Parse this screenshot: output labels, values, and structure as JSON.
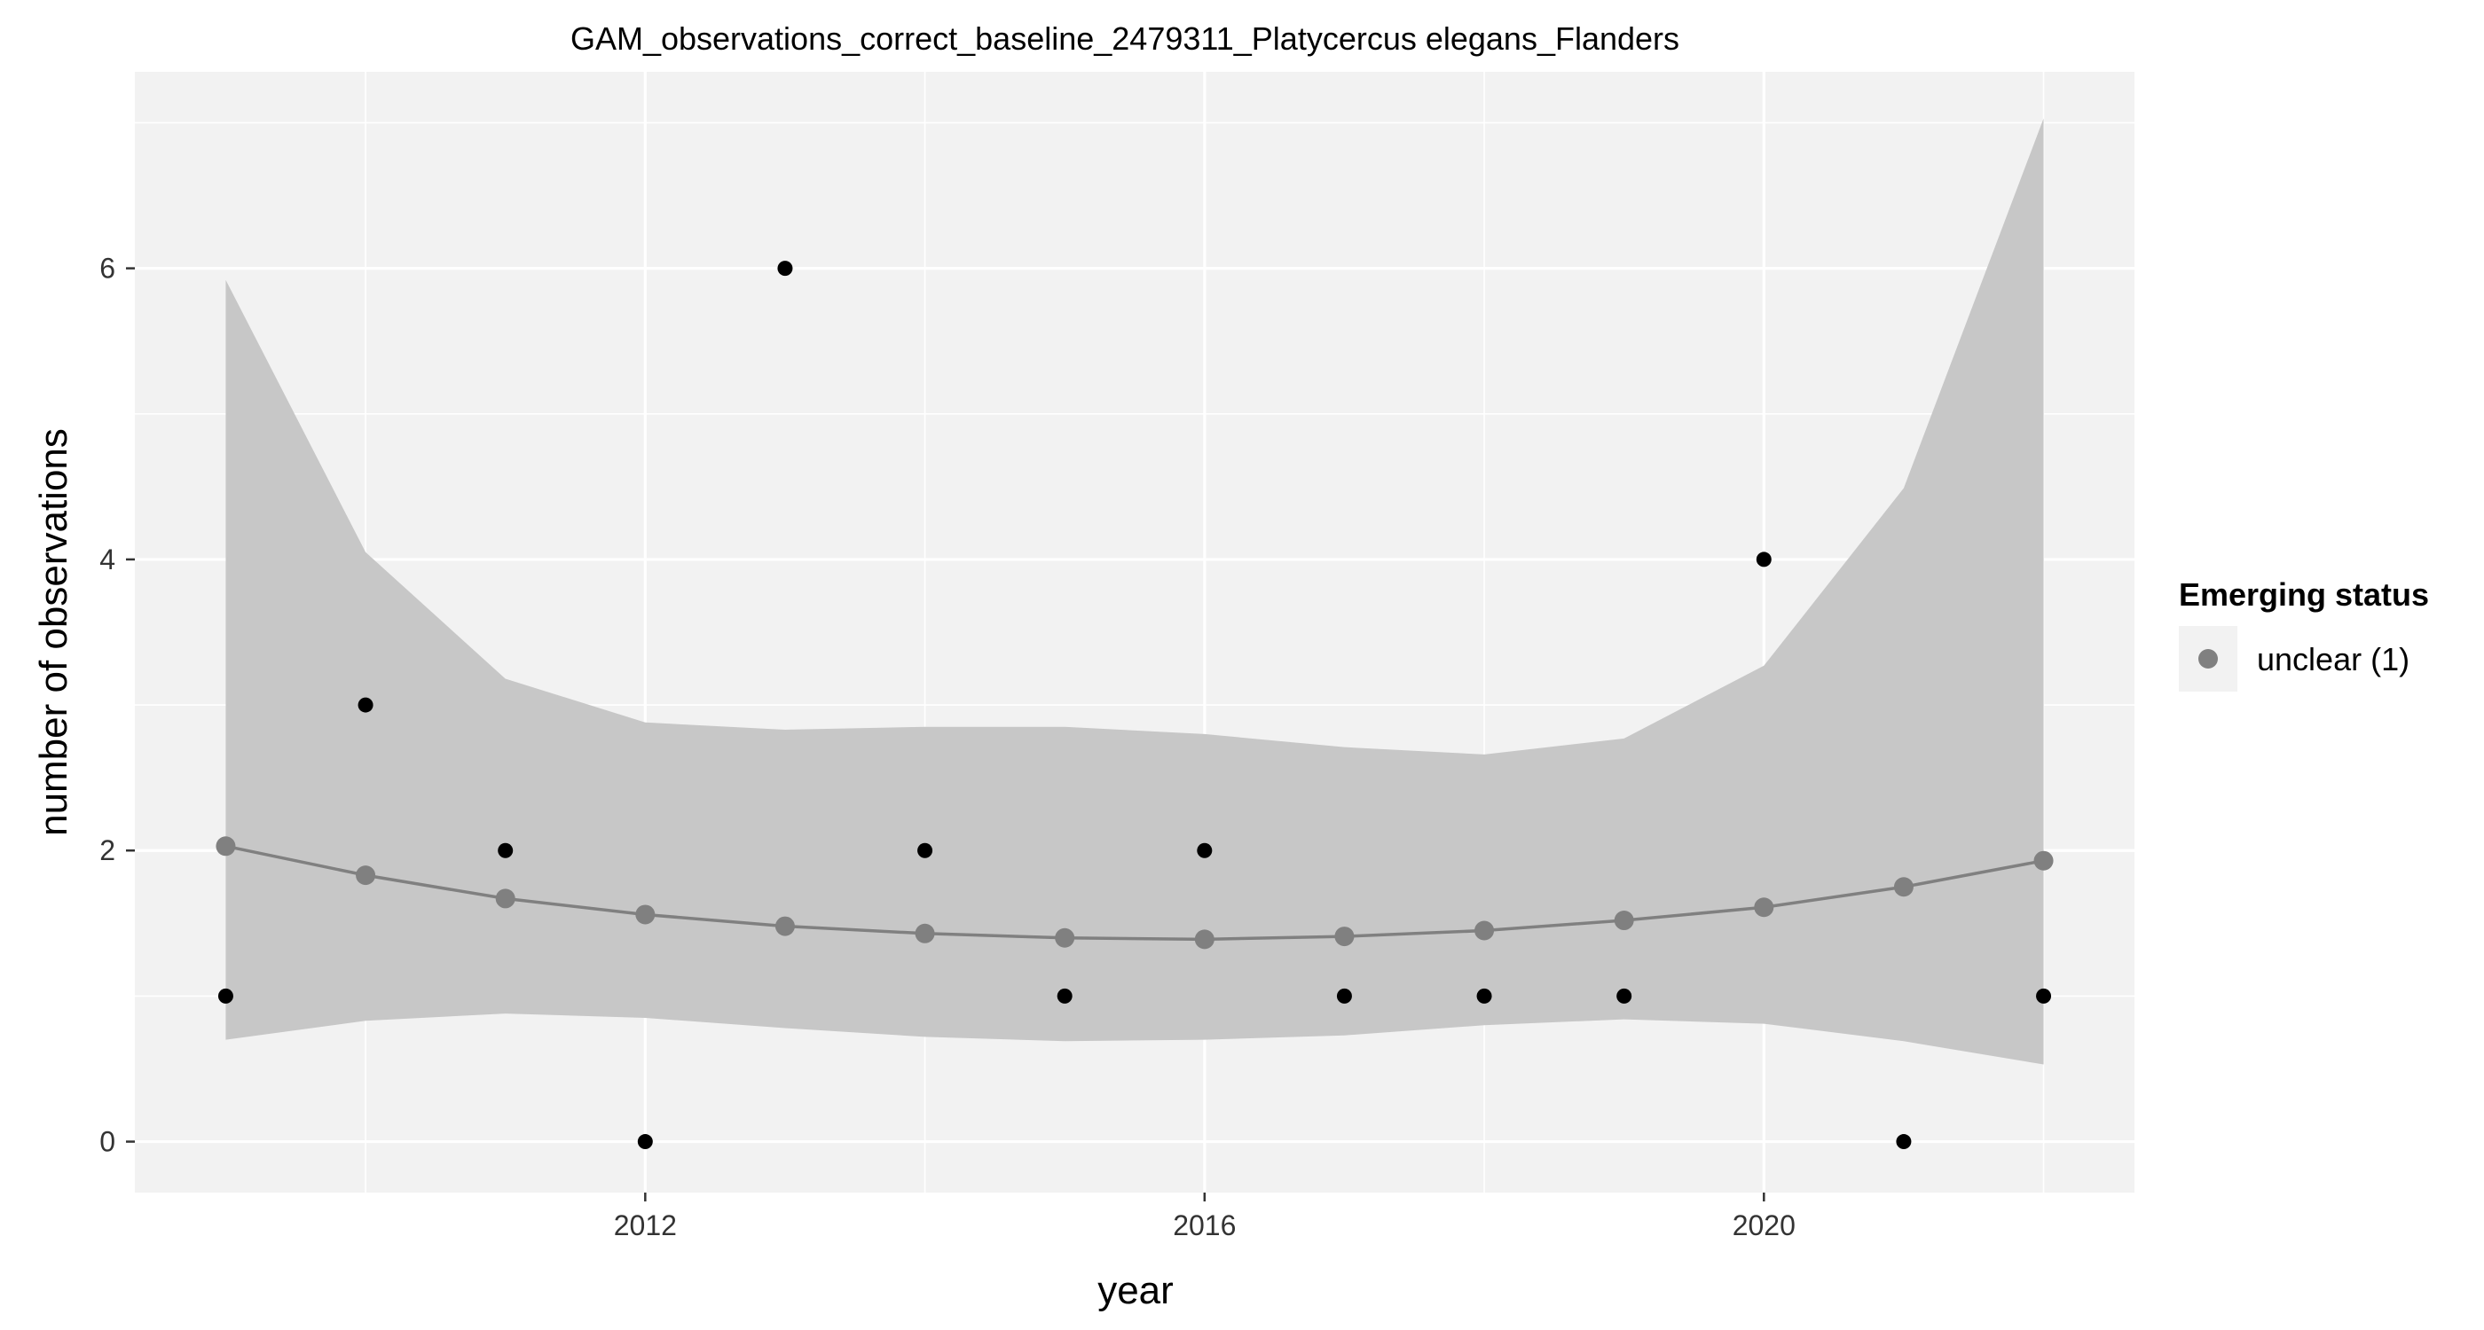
{
  "chart_data": {
    "type": "line",
    "title": "GAM_observations_correct_baseline_2479311_Platycercus elegans_Flanders",
    "xlabel": "year",
    "ylabel": "number of observations",
    "xlim": [
      2008.35,
      2022.65
    ],
    "ylim": [
      -0.35,
      7.35
    ],
    "x_ticks": [
      2012,
      2016,
      2020
    ],
    "y_ticks": [
      0,
      2,
      4,
      6
    ],
    "grid": true,
    "legend": {
      "title": "Emerging status",
      "position": "right",
      "entries": [
        {
          "label": "unclear (1)",
          "color": "#808080"
        }
      ]
    },
    "observations": {
      "x": [
        2009,
        2010,
        2011,
        2012,
        2013,
        2014,
        2015,
        2016,
        2017,
        2018,
        2019,
        2020,
        2021,
        2022
      ],
      "y": [
        1,
        3,
        2,
        0,
        6,
        2,
        1,
        2,
        1,
        1,
        1,
        4,
        0,
        1
      ]
    },
    "series": [
      {
        "name": "unclear (1)",
        "x": [
          2009,
          2010,
          2011,
          2012,
          2013,
          2014,
          2015,
          2016,
          2017,
          2018,
          2019,
          2020,
          2021,
          2022
        ],
        "fit": [
          2.03,
          1.83,
          1.67,
          1.56,
          1.48,
          1.43,
          1.4,
          1.39,
          1.41,
          1.45,
          1.52,
          1.61,
          1.75,
          1.93
        ],
        "lower": [
          0.7,
          0.83,
          0.88,
          0.85,
          0.78,
          0.72,
          0.69,
          0.7,
          0.73,
          0.8,
          0.84,
          0.81,
          0.69,
          0.53
        ],
        "upper": [
          5.92,
          4.05,
          3.18,
          2.88,
          2.83,
          2.85,
          2.85,
          2.8,
          2.71,
          2.66,
          2.77,
          3.27,
          4.49,
          7.03
        ]
      }
    ],
    "colors": {
      "panel": "#f2f2f2",
      "grid": "#ffffff",
      "ribbon": "#c7c7c7",
      "fit_line": "#808080",
      "fit_point": "#808080",
      "observation_point": "#000000"
    }
  }
}
